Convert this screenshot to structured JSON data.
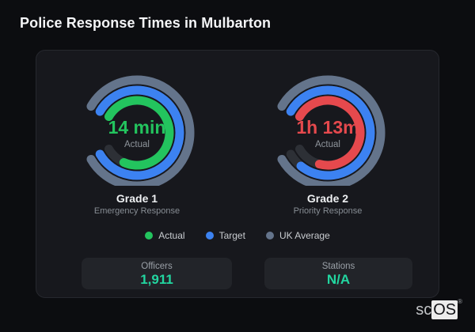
{
  "page": {
    "title": "Police Response Times in Mulbarton"
  },
  "colors": {
    "background": "#0c0d10",
    "card_background": "#17181d",
    "card_border": "#26282e",
    "stat_box_background": "#222429",
    "stat_value_accent": "#22d6a0",
    "muted_text": "#8f959c",
    "track": "#2d3036"
  },
  "stats": [
    {
      "label": "Officers",
      "value": "1,911"
    },
    {
      "label": "Stations",
      "value": "N/A"
    }
  ],
  "logo": {
    "prefix": "sc",
    "suffix": "OS",
    "registered": "®"
  },
  "chart_data": {
    "type": "radial-gauge",
    "start_angle_deg": -60,
    "angle_span_deg": 300,
    "track_color": "#2d3036",
    "ring_radii": [
      67,
      54,
      41
    ],
    "ring_width": 11,
    "legend_position": "bottom-center",
    "legend": [
      {
        "label": "Actual",
        "color": "#23c45e"
      },
      {
        "label": "Target",
        "color": "#3c82f1"
      },
      {
        "label": "UK Average",
        "color": "#64748b"
      }
    ],
    "gauges": [
      {
        "title": "Grade 1",
        "subtitle": "Emergency Response",
        "center_value": "14 min",
        "center_caption": "Actual",
        "value_color": "#23c45e",
        "rings": [
          {
            "name": "UK Average",
            "color": "#64748b",
            "fraction": 1.0
          },
          {
            "name": "Target",
            "color": "#3c82f1",
            "fraction": 1.0
          },
          {
            "name": "Actual",
            "color": "#23c45e",
            "fraction": 0.88
          }
        ]
      },
      {
        "title": "Grade 2",
        "subtitle": "Priority Response",
        "center_value": "1h 13m",
        "center_caption": "Actual",
        "value_color": "#e5494d",
        "rings": [
          {
            "name": "UK Average",
            "color": "#64748b",
            "fraction": 1.0
          },
          {
            "name": "Target",
            "color": "#3c82f1",
            "fraction": 0.93
          },
          {
            "name": "Actual",
            "color": "#e5494d",
            "fraction": 0.85
          }
        ]
      }
    ]
  }
}
